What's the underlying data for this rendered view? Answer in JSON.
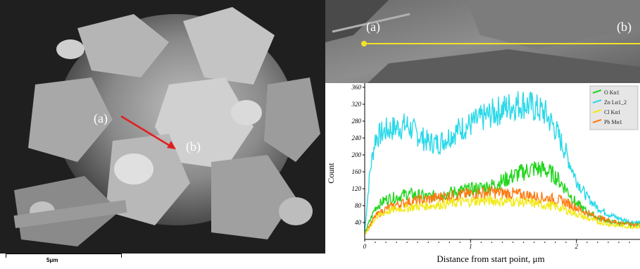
{
  "sem_image": {
    "point_a_label": "(a)",
    "point_b_label": "(b)",
    "scale_bar_label": "5μm",
    "line_color": "#e02020"
  },
  "linescan_strip": {
    "point_a_label": "(a)",
    "point_b_label": "(b)",
    "line_color": "#f2e22a"
  },
  "chart_data": {
    "type": "line",
    "title": "",
    "xlabel": "Distance  from start point, μm",
    "ylabel": "Count",
    "xlim": [
      0,
      2.6
    ],
    "ylim": [
      0,
      370
    ],
    "x_ticks": [
      "0",
      "1",
      "2"
    ],
    "y_ticks": [
      "40",
      "80",
      "120",
      "160",
      "200",
      "240",
      "280",
      "320",
      "360"
    ],
    "grid": false,
    "legend_position": "top-right",
    "series": [
      {
        "name": "O Kα1",
        "color": "#22d61e",
        "x": [
          0,
          0.1,
          0.2,
          0.3,
          0.4,
          0.5,
          0.6,
          0.7,
          0.8,
          0.9,
          1.0,
          1.1,
          1.2,
          1.3,
          1.4,
          1.5,
          1.6,
          1.7,
          1.8,
          1.9,
          2.0,
          2.1,
          2.2,
          2.3,
          2.4,
          2.5,
          2.6
        ],
        "y": [
          15,
          75,
          95,
          100,
          108,
          105,
          100,
          105,
          110,
          115,
          118,
          122,
          128,
          138,
          150,
          160,
          168,
          165,
          150,
          120,
          85,
          65,
          52,
          42,
          38,
          35,
          35
        ]
      },
      {
        "name": "Zn Lα1_2",
        "color": "#29d9e8",
        "x": [
          0,
          0.05,
          0.1,
          0.2,
          0.3,
          0.4,
          0.5,
          0.6,
          0.7,
          0.8,
          0.9,
          1.0,
          1.1,
          1.2,
          1.3,
          1.4,
          1.5,
          1.6,
          1.7,
          1.8,
          1.9,
          2.0,
          2.1,
          2.2,
          2.3,
          2.4,
          2.5,
          2.6
        ],
        "y": [
          20,
          160,
          240,
          258,
          265,
          270,
          248,
          230,
          228,
          245,
          262,
          272,
          285,
          298,
          308,
          318,
          322,
          312,
          300,
          262,
          205,
          140,
          100,
          75,
          60,
          50,
          42,
          40
        ]
      },
      {
        "name": "Cl Kα1",
        "color": "#f2ea1a",
        "x": [
          0,
          0.1,
          0.2,
          0.3,
          0.4,
          0.5,
          0.6,
          0.7,
          0.8,
          0.9,
          1.0,
          1.1,
          1.2,
          1.3,
          1.4,
          1.5,
          1.6,
          1.7,
          1.8,
          1.9,
          2.0,
          2.1,
          2.2,
          2.3,
          2.4,
          2.5,
          2.6
        ],
        "y": [
          10,
          50,
          65,
          72,
          75,
          78,
          80,
          82,
          85,
          88,
          90,
          92,
          92,
          90,
          90,
          88,
          85,
          82,
          78,
          70,
          60,
          50,
          42,
          36,
          32,
          30,
          30
        ]
      },
      {
        "name": "Pb Mα1",
        "color": "#ff7a12",
        "x": [
          0,
          0.1,
          0.2,
          0.3,
          0.4,
          0.5,
          0.6,
          0.7,
          0.8,
          0.9,
          1.0,
          1.1,
          1.2,
          1.3,
          1.4,
          1.5,
          1.6,
          1.7,
          1.8,
          1.9,
          2.0,
          2.1,
          2.2,
          2.3,
          2.4,
          2.5,
          2.6
        ],
        "y": [
          12,
          55,
          72,
          82,
          88,
          92,
          95,
          100,
          103,
          105,
          108,
          110,
          112,
          110,
          108,
          105,
          102,
          98,
          95,
          88,
          75,
          62,
          52,
          45,
          40,
          36,
          35
        ]
      }
    ]
  }
}
